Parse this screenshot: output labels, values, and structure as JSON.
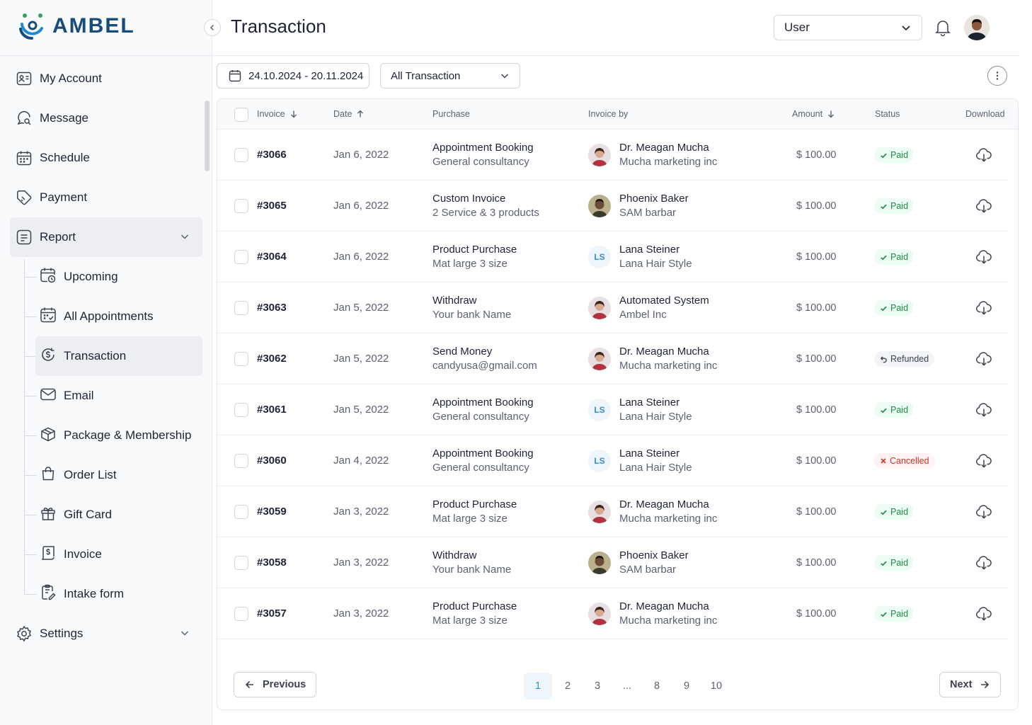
{
  "brand": {
    "name": "AMBEL"
  },
  "header": {
    "title": "Transaction",
    "user_select": "User"
  },
  "sidebar": {
    "items": [
      {
        "label": "My Account"
      },
      {
        "label": "Message"
      },
      {
        "label": "Schedule"
      },
      {
        "label": "Payment"
      },
      {
        "label": "Report"
      },
      {
        "label": "Settings"
      }
    ],
    "sub_items": [
      {
        "label": "Upcoming"
      },
      {
        "label": "All Appointments"
      },
      {
        "label": "Transaction"
      },
      {
        "label": "Email"
      },
      {
        "label": "Package & Membership"
      },
      {
        "label": "Order List"
      },
      {
        "label": "Gift Card"
      },
      {
        "label": "Invoice"
      },
      {
        "label": "Intake form"
      }
    ]
  },
  "filters": {
    "date_range": "24.10.2024 - 20.11.2024",
    "type": "All Transaction"
  },
  "table": {
    "columns": [
      "Invoice",
      "Date",
      "Purchase",
      "Invoice by",
      "Amount",
      "Status",
      "Download"
    ],
    "rows": [
      {
        "invoice": "#3066",
        "date": "Jan 6, 2022",
        "purchase": "Appointment Booking",
        "purchase_sub": "General consultancy",
        "by": "Dr. Meagan Mucha",
        "by_sub": "Mucha marketing inc",
        "avatar": "woman",
        "amount": "$ 100.00",
        "status": "Paid"
      },
      {
        "invoice": "#3065",
        "date": "Jan 6, 2022",
        "purchase": "Custom Invoice",
        "purchase_sub": "2 Service & 3 products",
        "by": "Phoenix Baker",
        "by_sub": "SAM barbar",
        "avatar": "man",
        "amount": "$ 100.00",
        "status": "Paid"
      },
      {
        "invoice": "#3064",
        "date": "Jan 6, 2022",
        "purchase": "Product Purchase",
        "purchase_sub": "Mat large 3 size",
        "by": "Lana Steiner",
        "by_sub": "Lana Hair Style",
        "avatar": "LS",
        "amount": "$ 100.00",
        "status": "Paid"
      },
      {
        "invoice": "#3063",
        "date": "Jan 5, 2022",
        "purchase": "Withdraw",
        "purchase_sub": "Your bank Name",
        "by": "Automated System",
        "by_sub": "Ambel Inc",
        "avatar": "woman",
        "amount": "$ 100.00",
        "status": "Paid"
      },
      {
        "invoice": "#3062",
        "date": "Jan 5, 2022",
        "purchase": "Send Money",
        "purchase_sub": "candyusa@gmail.com",
        "by": "Dr. Meagan Mucha",
        "by_sub": "Mucha marketing inc",
        "avatar": "woman",
        "amount": "$ 100.00",
        "status": "Refunded"
      },
      {
        "invoice": "#3061",
        "date": "Jan 5, 2022",
        "purchase": "Appointment Booking",
        "purchase_sub": "General consultancy",
        "by": "Lana Steiner",
        "by_sub": "Lana Hair Style",
        "avatar": "LS",
        "amount": "$ 100.00",
        "status": "Paid"
      },
      {
        "invoice": "#3060",
        "date": "Jan 4, 2022",
        "purchase": "Appointment Booking",
        "purchase_sub": "General consultancy",
        "by": "Lana Steiner",
        "by_sub": "Lana Hair Style",
        "avatar": "LS",
        "amount": "$ 100.00",
        "status": "Cancelled"
      },
      {
        "invoice": "#3059",
        "date": "Jan 3, 2022",
        "purchase": "Product Purchase",
        "purchase_sub": "Mat large 3 size",
        "by": "Dr. Meagan Mucha",
        "by_sub": "Mucha marketing inc",
        "avatar": "woman",
        "amount": "$ 100.00",
        "status": "Paid"
      },
      {
        "invoice": "#3058",
        "date": "Jan 3, 2022",
        "purchase": "Withdraw",
        "purchase_sub": "Your bank Name",
        "by": "Phoenix Baker",
        "by_sub": "SAM barbar",
        "avatar": "man",
        "amount": "$ 100.00",
        "status": "Paid"
      },
      {
        "invoice": "#3057",
        "date": "Jan 3, 2022",
        "purchase": "Product Purchase",
        "purchase_sub": "Mat large 3 size",
        "by": "Dr. Meagan Mucha",
        "by_sub": "Mucha marketing inc",
        "avatar": "woman",
        "amount": "$ 100.00",
        "status": "Paid"
      }
    ]
  },
  "pagination": {
    "previous": "Previous",
    "next": "Next",
    "pages": [
      "1",
      "2",
      "3",
      "...",
      "8",
      "9",
      "10"
    ],
    "current": "1"
  },
  "colors": {
    "brand": "#164b7a",
    "accent": "#2f8fd8",
    "paid": "#1f8a4c",
    "cancelled": "#c8362b"
  }
}
